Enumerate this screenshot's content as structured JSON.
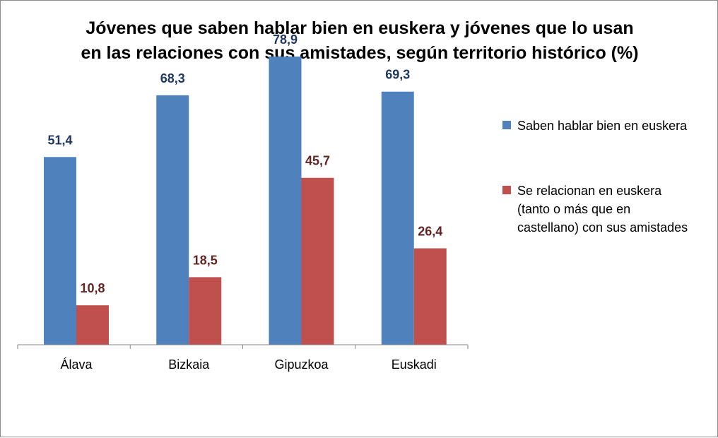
{
  "chart_data": {
    "type": "bar",
    "title": "Jóvenes que saben hablar bien en euskera y jóvenes que lo usan en las relaciones con sus amistades, según territorio histórico (%)",
    "title_lines": [
      "Jóvenes que saben hablar bien en euskera y jóvenes que lo usan",
      "en las relaciones con sus amistades, según territorio histórico (%)"
    ],
    "categories": [
      "Álava",
      "Bizkaia",
      "Gipuzkoa",
      "Euskadi"
    ],
    "series": [
      {
        "name": "Saben hablar bien en euskera",
        "legend_lines": [
          "Saben hablar bien en euskera"
        ],
        "color": "#4F81BD",
        "label_color": "#1F3864",
        "values": [
          51.4,
          68.3,
          78.9,
          69.3
        ],
        "labels": [
          "51,4",
          "68,3",
          "78,9",
          "69,3"
        ]
      },
      {
        "name": "Se relacionan en euskera (tanto o más que en castellano) con sus amistades",
        "legend_lines": [
          "Se relacionan en euskera",
          "(tanto o más que en",
          "castellano) con sus amistades"
        ],
        "color": "#C0504D",
        "label_color": "#632523",
        "values": [
          10.8,
          18.5,
          45.7,
          26.4
        ],
        "labels": [
          "10,8",
          "18,5",
          "45,7",
          "26,4"
        ]
      }
    ],
    "xlabel": "",
    "ylabel": "",
    "ylim": [
      0,
      90
    ],
    "grid": false,
    "legend_position": "right"
  }
}
